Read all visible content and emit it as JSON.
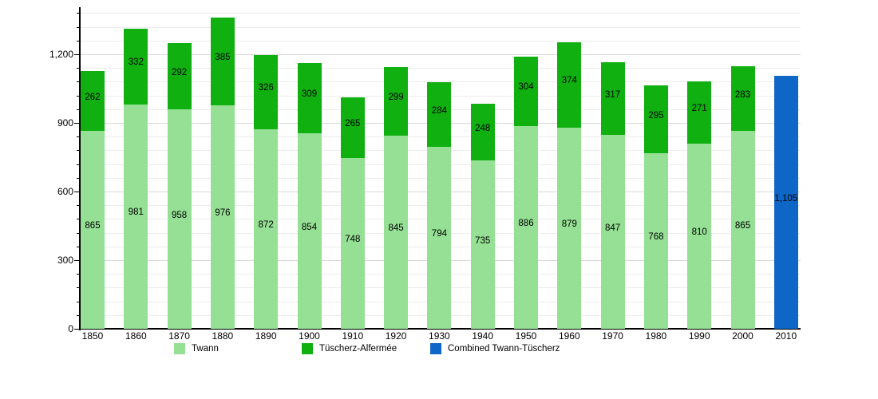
{
  "chart_data": {
    "type": "bar",
    "subtype": "stacked",
    "title": "",
    "xlabel": "",
    "ylabel": "",
    "categories": [
      "1850",
      "1860",
      "1870",
      "1880",
      "1890",
      "1900",
      "1910",
      "1920",
      "1930",
      "1940",
      "1950",
      "1960",
      "1970",
      "1980",
      "1990",
      "2000",
      "2010"
    ],
    "series": [
      {
        "name": "Twann",
        "color": "#95e095",
        "values": [
          865,
          981,
          958,
          976,
          872,
          854,
          748,
          845,
          794,
          735,
          886,
          879,
          847,
          768,
          810,
          865,
          null
        ]
      },
      {
        "name": "Tüscherz-Alfermée",
        "color": "#10b010",
        "values": [
          262,
          332,
          292,
          385,
          326,
          309,
          265,
          299,
          284,
          248,
          304,
          374,
          317,
          295,
          271,
          283,
          null
        ]
      },
      {
        "name": "Combined Twann-Tüscherz",
        "color": "#0e66c6",
        "values": [
          null,
          null,
          null,
          null,
          null,
          null,
          null,
          null,
          null,
          null,
          null,
          null,
          null,
          null,
          null,
          null,
          1105
        ]
      }
    ],
    "bar_value_labels": true,
    "y_axis": {
      "ticks": [
        0,
        300,
        600,
        900,
        1200
      ],
      "minor_interval": 60,
      "ylim": [
        0,
        1400
      ],
      "grid": true
    },
    "legend": {
      "position": "bottom",
      "entries": [
        "Twann",
        "Tüscherz-Alfermée",
        "Combined Twann-Tüscherz"
      ]
    },
    "colors": {
      "grid_major": "#d9d9d9",
      "grid_minor": "#ececec",
      "axis": "#000000",
      "text": "#000000",
      "background": "#ffffff"
    }
  }
}
